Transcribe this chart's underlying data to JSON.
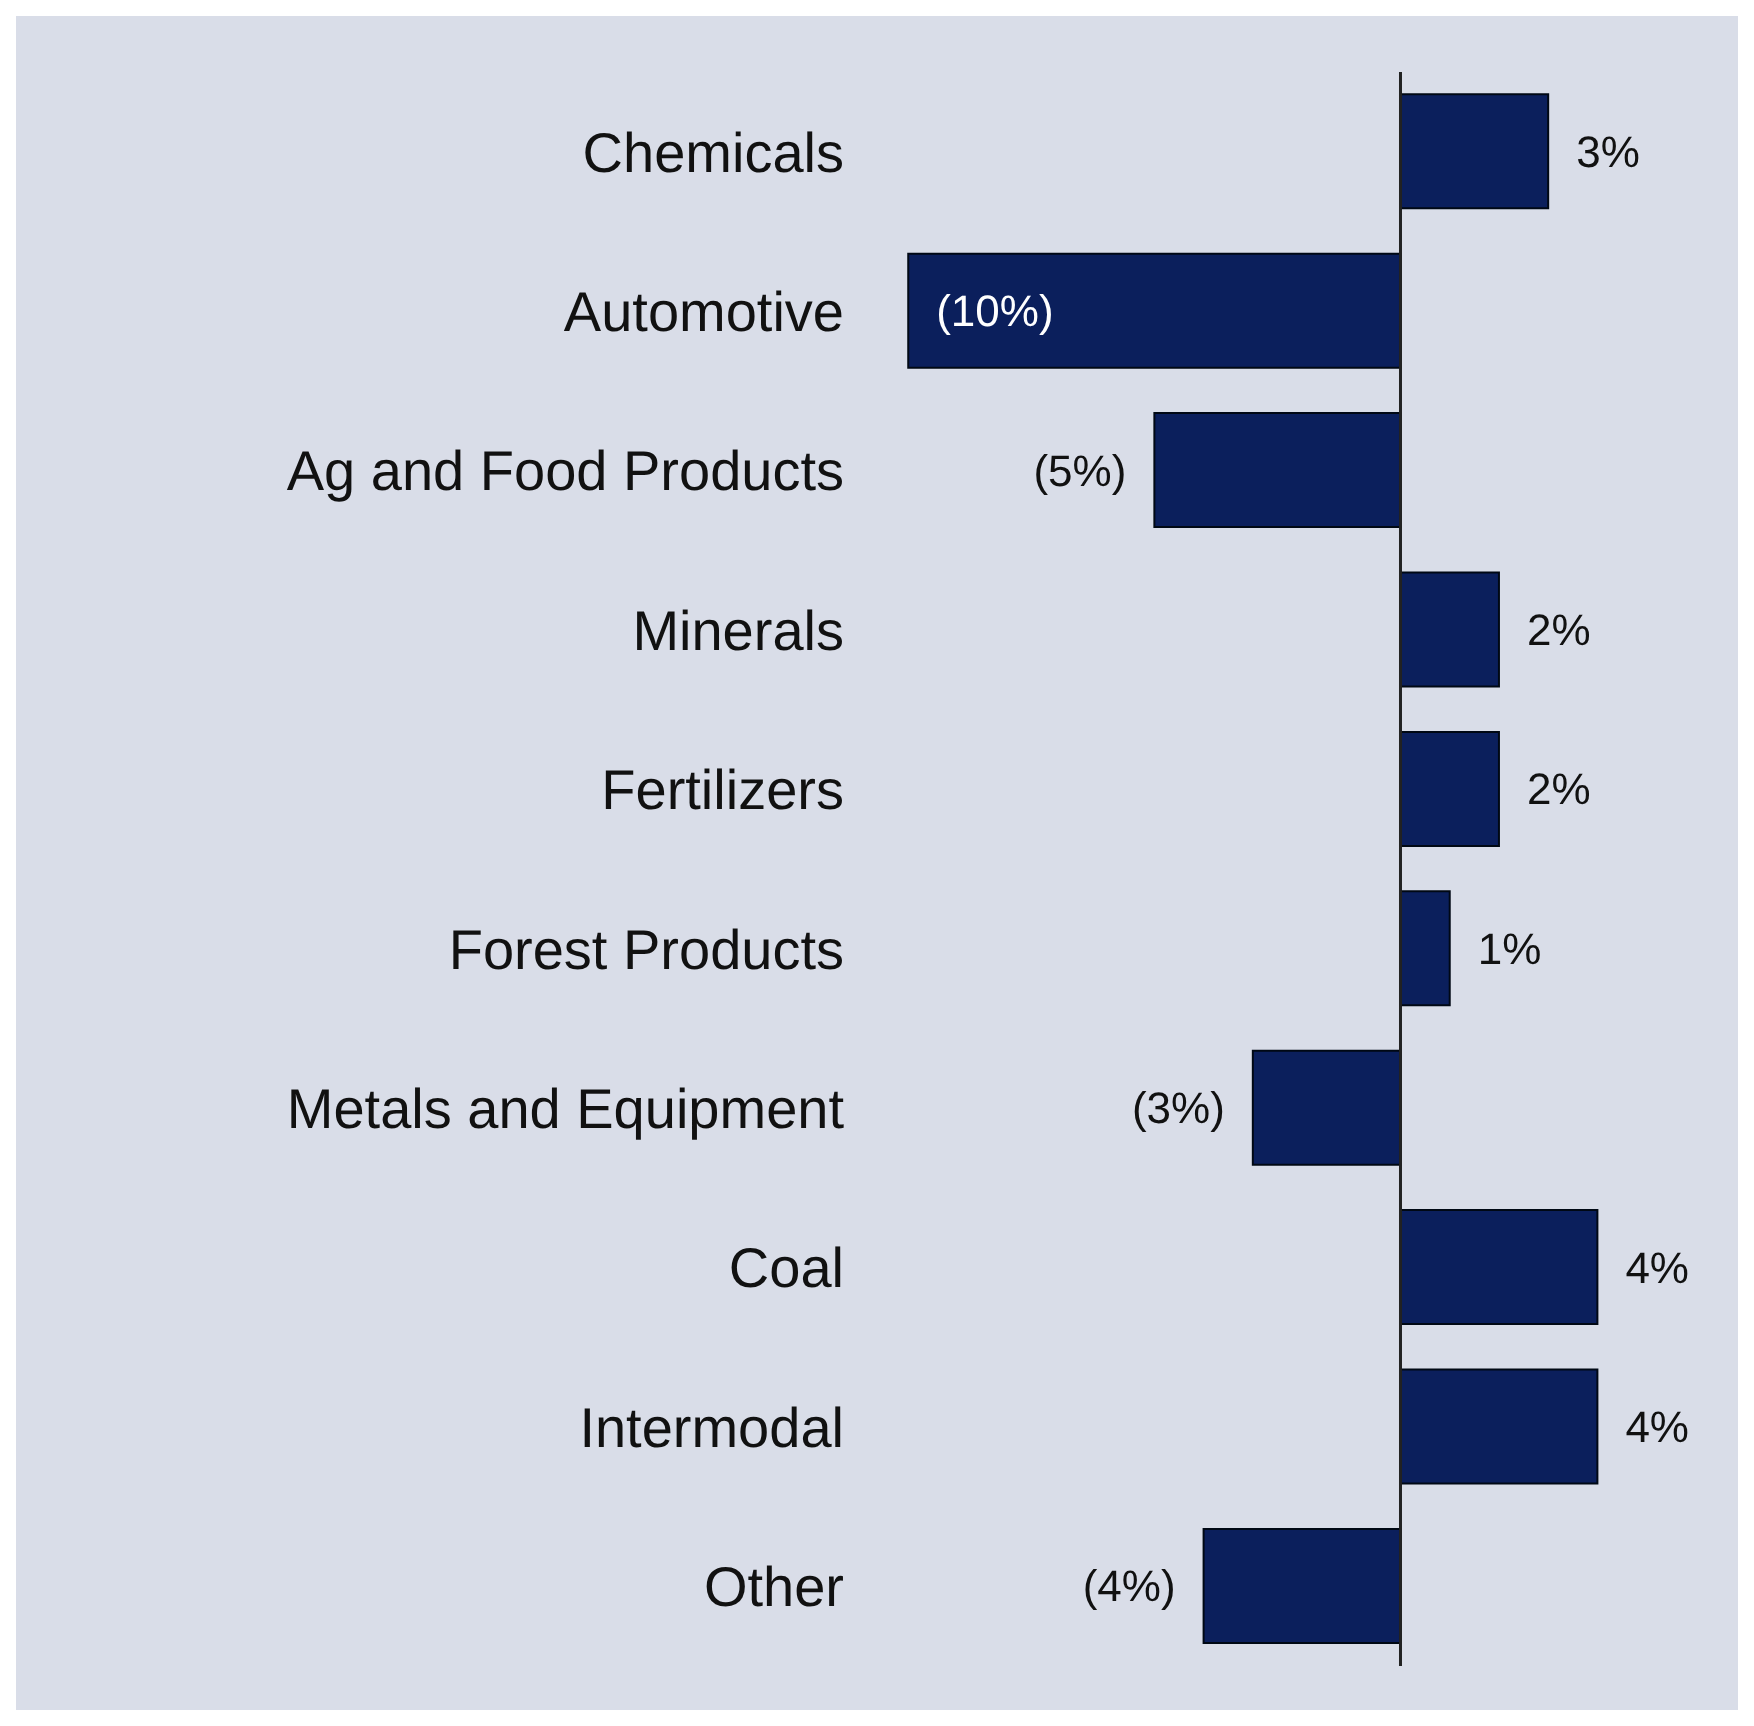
{
  "chart_data": {
    "type": "bar",
    "orientation": "horizontal",
    "categories": [
      "Chemicals",
      "Automotive",
      "Ag and Food Products",
      "Minerals",
      "Fertilizers",
      "Forest Products",
      "Metals and Equipment",
      "Coal",
      "Intermodal",
      "Other"
    ],
    "values": [
      3,
      -10,
      -5,
      2,
      2,
      1,
      -3,
      4,
      4,
      -4
    ],
    "value_labels": [
      "3%",
      "(10%)",
      "(5%)",
      "2%",
      "2%",
      "1%",
      "(3%)",
      "4%",
      "4%",
      "(4%)"
    ],
    "color": "#0b1f5c",
    "tick_labels": "y"
  }
}
